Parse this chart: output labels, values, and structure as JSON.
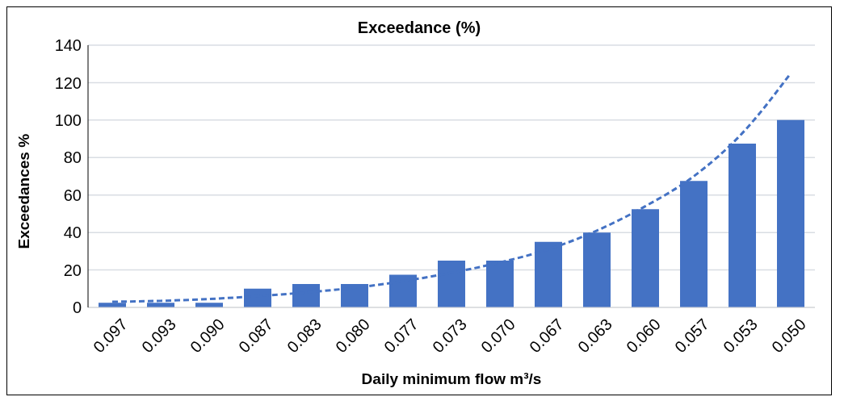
{
  "chart_data": {
    "type": "bar",
    "title": "Exceedance (%)",
    "xlabel": "Daily minimum flow m³/s",
    "ylabel": "Exceedances %",
    "categories": [
      "0.097",
      "0.093",
      "0.090",
      "0.087",
      "0.083",
      "0.080",
      "0.077",
      "0.073",
      "0.070",
      "0.067",
      "0.063",
      "0.060",
      "0.057",
      "0.053",
      "0.050"
    ],
    "series": [
      {
        "color": "#4472c4",
        "values": [
          2.5,
          2.5,
          2.5,
          10,
          12.5,
          12.5,
          17.5,
          25,
          25,
          35,
          40,
          52.5,
          67.5,
          87.5,
          100
        ]
      },
      {
        "type": "line",
        "color": "#4472c4",
        "line_style": "dashed",
        "x": [
          "0.097",
          "0.093",
          "0.090",
          "0.087",
          "0.083",
          "0.080",
          "0.077",
          "0.073",
          "0.070",
          "0.067",
          "0.063",
          "0.060",
          "0.057",
          "0.053",
          "0.050"
        ],
        "values": [
          3,
          3.5,
          4.5,
          6,
          8,
          10.5,
          14,
          18.5,
          24,
          31,
          41,
          54,
          70,
          93,
          125
        ]
      }
    ],
    "ylim": [
      0,
      140
    ],
    "yticks": [
      0,
      20,
      40,
      60,
      80,
      100,
      120,
      140
    ],
    "grid": "y",
    "legend": false,
    "marker": "none"
  }
}
